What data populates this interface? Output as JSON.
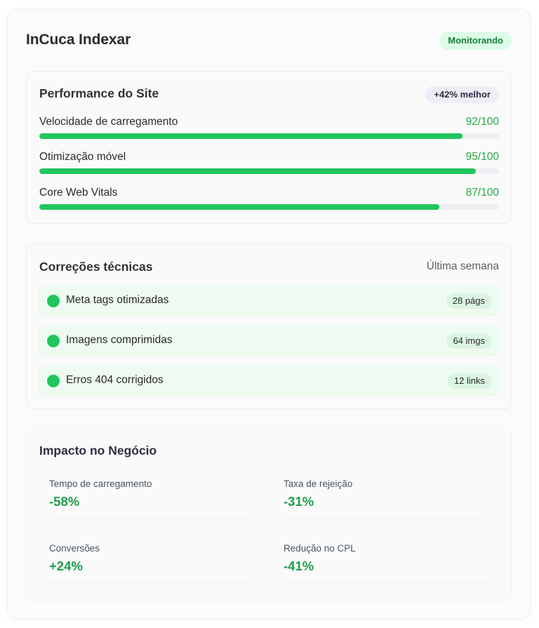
{
  "header": {
    "title": "InCuca Indexar",
    "status": "Monitorando"
  },
  "performance": {
    "title": "Performance do Site",
    "badge": "+42% melhor",
    "metrics": [
      {
        "label": "Velocidade de carregamento",
        "score": "92/100",
        "value": 0.92
      },
      {
        "label": "Otimização móvel",
        "score": "95/100",
        "value": 0.95
      },
      {
        "label": "Core Web Vitals",
        "score": "87/100",
        "value": 0.87
      }
    ]
  },
  "fixes": {
    "title": "Correções técnicas",
    "period": "Última semana",
    "items": [
      {
        "label": "Meta tags otimizadas",
        "count": "28 págs"
      },
      {
        "label": "Imagens comprimidas",
        "count": "64 imgs"
      },
      {
        "label": "Erros 404 corrigidos",
        "count": "12 links"
      }
    ]
  },
  "impact": {
    "title": "Impacto no Negócio",
    "stats": [
      {
        "label": "Tempo de carregamento",
        "value": "-58%"
      },
      {
        "label": "Taxa de rejeição",
        "value": "-31%"
      },
      {
        "label": "Conversões",
        "value": "+24%"
      },
      {
        "label": "Redução no CPL",
        "value": "-41%"
      }
    ]
  },
  "colors": {
    "accent": "#22c55e",
    "accent_text": "#28a745",
    "badge_bg": "#dcfce7",
    "badge_text": "#15803d",
    "fix_row_bg": "#eefbf1"
  }
}
